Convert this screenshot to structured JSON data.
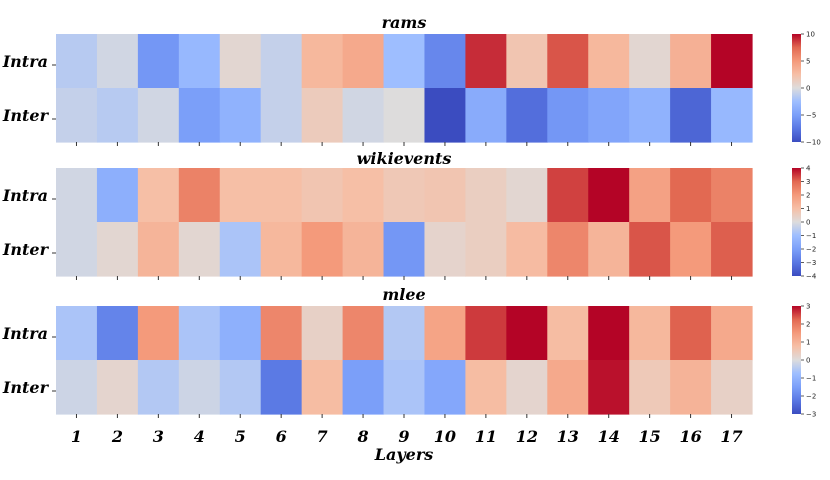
{
  "chart_data": {
    "type": "heatmap",
    "colormap": "coolwarm",
    "xlabel": "Layers",
    "columns": [
      "1",
      "2",
      "3",
      "4",
      "5",
      "6",
      "7",
      "8",
      "9",
      "10",
      "11",
      "12",
      "13",
      "14",
      "15",
      "16",
      "17"
    ],
    "rows": [
      "Intra",
      "Inter"
    ],
    "panels": [
      {
        "title": "rams",
        "vmin": -10,
        "vmax": 10,
        "colorbar_ticks": [
          -10,
          -5,
          0,
          5,
          10
        ],
        "values": {
          "Intra": [
            -1.5,
            -0.5,
            -5.5,
            -3.0,
            0.5,
            -1.0,
            3.0,
            4.0,
            -2.5,
            -6.5,
            9.0,
            2.0,
            8.0,
            3.0,
            0.5,
            3.5,
            11.5
          ],
          "Inter": [
            -1.0,
            -1.5,
            -0.5,
            -5.0,
            -3.5,
            -1.0,
            1.5,
            -0.5,
            0.0,
            -11.0,
            -4.0,
            -8.0,
            -5.5,
            -4.5,
            -3.5,
            -8.5,
            -3.0
          ]
        }
      },
      {
        "title": "wikievents",
        "vmin": -4,
        "vmax": 4,
        "colorbar_ticks": [
          -4,
          -3,
          -2,
          -1,
          0,
          1,
          2,
          3,
          4
        ],
        "values": {
          "Intra": [
            -0.2,
            -1.5,
            1.0,
            2.5,
            1.0,
            1.0,
            0.8,
            1.0,
            0.7,
            0.8,
            0.5,
            0.2,
            3.4,
            4.1,
            1.8,
            3.0,
            2.5
          ],
          "Inter": [
            -0.2,
            0.2,
            1.3,
            0.2,
            -0.8,
            1.2,
            2.0,
            1.3,
            -2.2,
            0.3,
            0.5,
            1.1,
            2.4,
            1.3,
            3.2,
            2.0,
            3.1
          ]
        }
      },
      {
        "title": "mlee",
        "vmin": -3,
        "vmax": 3,
        "colorbar_ticks": [
          -3,
          -2,
          -1,
          0,
          1,
          2,
          3
        ],
        "values": {
          "Intra": [
            -0.6,
            -2.0,
            1.5,
            -0.6,
            -1.1,
            1.8,
            0.3,
            1.8,
            -0.5,
            1.3,
            2.6,
            3.2,
            0.8,
            3.2,
            0.9,
            2.3,
            1.2
          ],
          "Inter": [
            -0.2,
            0.2,
            -0.5,
            -0.2,
            -0.5,
            -2.2,
            0.8,
            -1.5,
            -0.6,
            -1.3,
            0.8,
            0.2,
            1.2,
            2.9,
            0.5,
            1.0,
            0.3
          ]
        }
      }
    ]
  }
}
